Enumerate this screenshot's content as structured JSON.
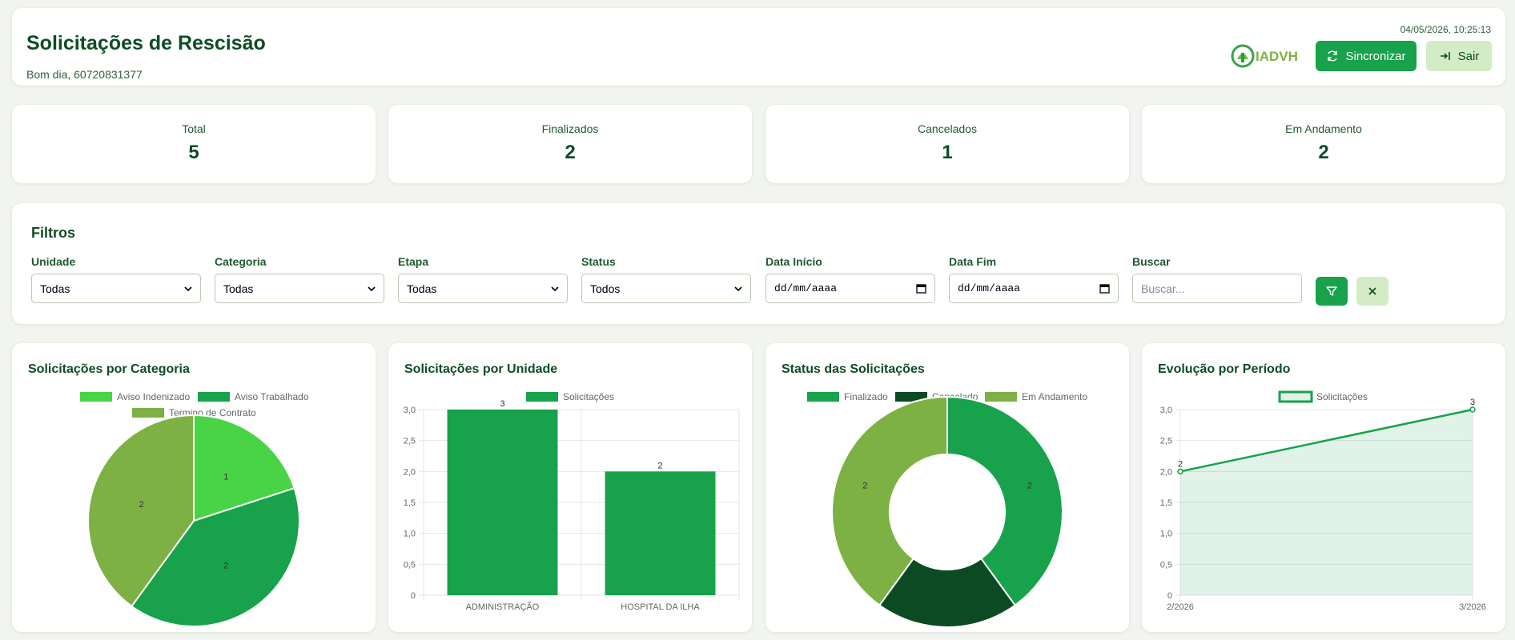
{
  "header": {
    "title": "Solicitações de Rescisão",
    "greeting": "Bom dia, 60720831377",
    "datetime": "04/05/2026, 10:25:13",
    "logo_text": "IADVH",
    "sync_label": "Sincronizar",
    "logout_label": "Sair"
  },
  "stats": [
    {
      "label": "Total",
      "value": "5"
    },
    {
      "label": "Finalizados",
      "value": "2"
    },
    {
      "label": "Cancelados",
      "value": "1"
    },
    {
      "label": "Em Andamento",
      "value": "2"
    }
  ],
  "filters": {
    "title": "Filtros",
    "unidade": {
      "label": "Unidade",
      "value": "Todas"
    },
    "categoria": {
      "label": "Categoria",
      "value": "Todas"
    },
    "etapa": {
      "label": "Etapa",
      "value": "Todas"
    },
    "status": {
      "label": "Status",
      "value": "Todos"
    },
    "data_inicio": {
      "label": "Data Início",
      "value": "dd/mm/aaaa"
    },
    "data_fim": {
      "label": "Data Fim",
      "value": "dd/mm/aaaa"
    },
    "buscar": {
      "label": "Buscar",
      "placeholder": "Buscar..."
    }
  },
  "colors": {
    "brand": "#17a24b",
    "brand_light": "#d3ecc6",
    "title_green": "#0d4d23",
    "light_green": "#48d445",
    "olive_green": "#7db143",
    "dark_green": "#0b4a22"
  },
  "chart_data": [
    {
      "type": "pie",
      "title": "Solicitações por Categoria",
      "categories": [
        "Aviso Indenizado",
        "Aviso Trabalhado",
        "Termino de Contrato"
      ],
      "values": [
        1,
        2,
        2
      ],
      "colors": [
        "#48d445",
        "#17a24b",
        "#7db143"
      ],
      "legend": "top"
    },
    {
      "type": "bar",
      "title": "Solicitações por Unidade",
      "categories": [
        "ADMINISTRAÇÃO",
        "HOSPITAL DA ILHA"
      ],
      "series": [
        {
          "name": "Solicitações",
          "values": [
            3,
            2
          ]
        }
      ],
      "ylim": [
        0,
        3
      ],
      "yticks": [
        "0",
        "0,5",
        "1,0",
        "1,5",
        "2,0",
        "2,5",
        "3,0"
      ],
      "grid": true,
      "legend": "top"
    },
    {
      "type": "pie",
      "title": "Status das Solicitações",
      "categories": [
        "Finalizado",
        "Cancelado",
        "Em Andamento"
      ],
      "values": [
        2,
        1,
        2
      ],
      "colors": [
        "#17a24b",
        "#0b4a22",
        "#7db143"
      ],
      "legend": "top"
    },
    {
      "type": "area",
      "title": "Evolução por Período",
      "categories": [
        "2/2026",
        "3/2026"
      ],
      "series": [
        {
          "name": "Solicitações",
          "values": [
            2,
            3
          ]
        }
      ],
      "ylim": [
        0,
        3
      ],
      "yticks": [
        "0",
        "0,5",
        "1,0",
        "1,5",
        "2,0",
        "2,5",
        "3,0"
      ],
      "grid": true,
      "legend": "top"
    }
  ]
}
